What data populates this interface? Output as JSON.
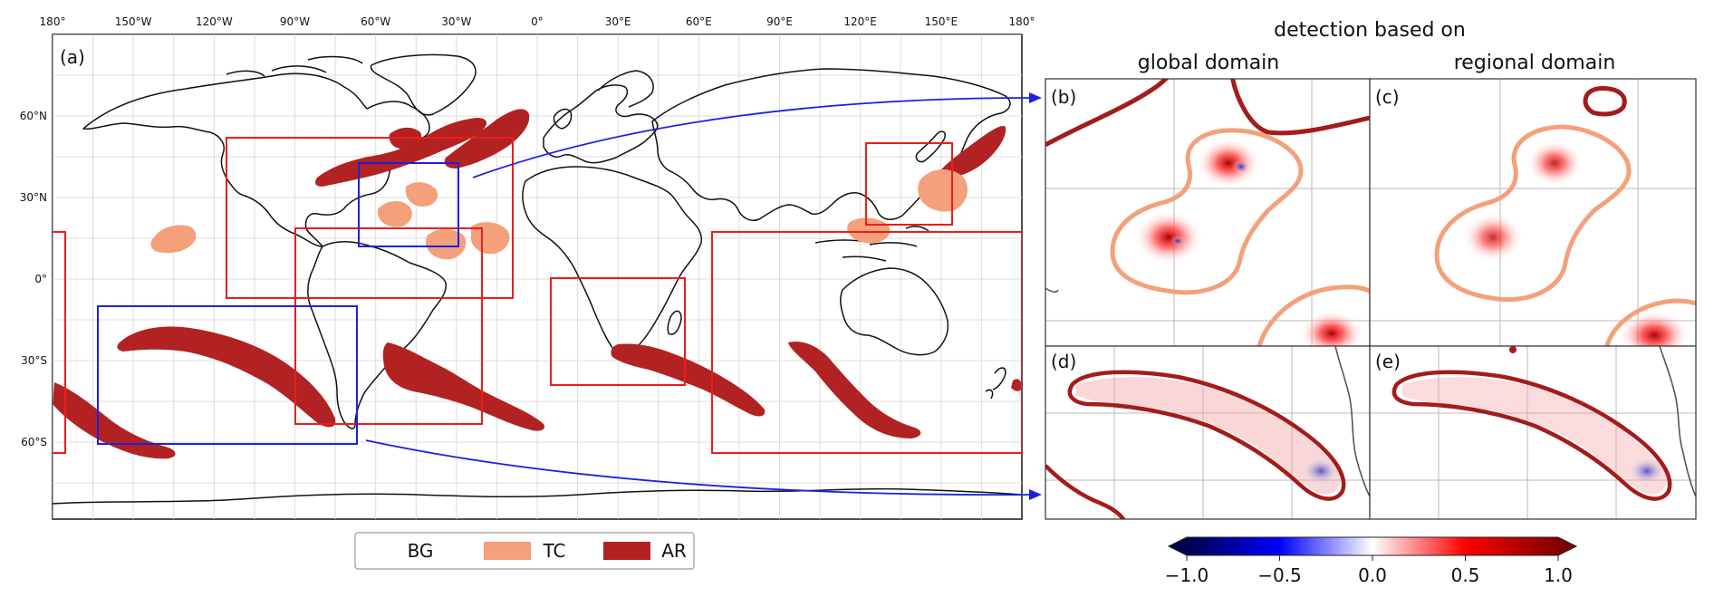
{
  "map": {
    "panel_label": "(a)",
    "lon_labels": [
      "180°",
      "150°W",
      "120°W",
      "90°W",
      "60°W",
      "30°W",
      "0°",
      "30°E",
      "60°E",
      "90°E",
      "120°E",
      "150°E",
      "180°"
    ],
    "lat_labels": [
      "60°N",
      "30°N",
      "0°",
      "30°S",
      "60°S"
    ],
    "colors": {
      "TC": "#f4a07a",
      "AR": "#b22222",
      "region_box": "#ee1c1c",
      "focus_box": "#1f1fe0",
      "coast": "#111111"
    }
  },
  "legend": {
    "items": [
      {
        "label": "BG",
        "color": "#ffffff"
      },
      {
        "label": "TC",
        "color": "#f4a07a"
      },
      {
        "label": "AR",
        "color": "#b22222"
      }
    ]
  },
  "right": {
    "title": "detection based on",
    "col_global": "global domain",
    "col_regional": "regional domain",
    "panels": [
      "(b)",
      "(c)",
      "(d)",
      "(e)"
    ]
  },
  "colorbar": {
    "ticks": [
      "−1.0",
      "−0.5",
      "0.0",
      "0.5",
      "1.0"
    ],
    "range": [
      -1.0,
      1.0
    ],
    "cmap": "seismic"
  }
}
